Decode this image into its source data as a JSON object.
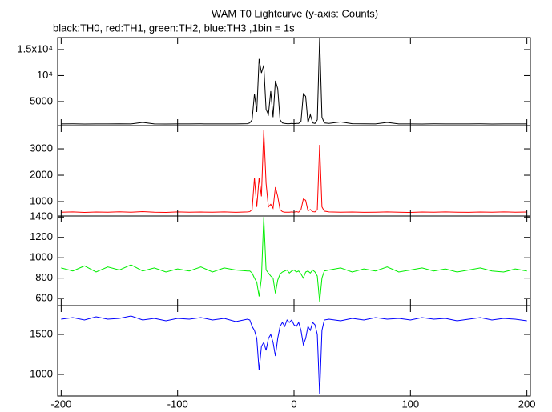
{
  "chart_data": {
    "type": "line",
    "title": "WAM T0 Lightcurve (y-axis: Counts)",
    "subtitle": "black:TH0, red:TH1, green:TH2, blue:TH3 ,1bin = 1s",
    "xlim": [
      -203,
      203
    ],
    "xticks": [
      -200,
      -100,
      0,
      100,
      200
    ],
    "x": [
      -200,
      -190,
      -180,
      -170,
      -160,
      -150,
      -140,
      -130,
      -120,
      -110,
      -100,
      -90,
      -80,
      -70,
      -60,
      -50,
      -40,
      -38,
      -36,
      -34,
      -32,
      -30,
      -28,
      -26,
      -24,
      -22,
      -20,
      -18,
      -16,
      -14,
      -12,
      -10,
      -8,
      -6,
      -4,
      -2,
      0,
      2,
      4,
      6,
      8,
      10,
      12,
      14,
      16,
      18,
      20,
      22,
      24,
      26,
      30,
      40,
      50,
      60,
      70,
      80,
      90,
      100,
      110,
      120,
      130,
      140,
      150,
      160,
      170,
      180,
      190,
      200
    ],
    "series": [
      {
        "color": "#000000",
        "ylim": [
          380,
          17300
        ],
        "yticks": [
          5000,
          {
            "value": 10000,
            "label": "10⁴"
          },
          {
            "value": 15000,
            "label": "1.5x10⁴"
          }
        ],
        "values": [
          700,
          720,
          690,
          710,
          700,
          730,
          700,
          1000,
          700,
          690,
          710,
          700,
          720,
          700,
          710,
          700,
          750,
          900,
          1500,
          6500,
          3000,
          13200,
          10500,
          12000,
          3500,
          2500,
          7000,
          2000,
          9000,
          7500,
          1500,
          900,
          800,
          750,
          750,
          800,
          750,
          800,
          800,
          1200,
          6500,
          6000,
          900,
          2500,
          900,
          800,
          1500,
          17200,
          2000,
          900,
          800,
          1100,
          750,
          720,
          700,
          1000,
          710,
          700,
          690,
          720,
          700,
          710,
          700,
          720,
          690,
          700,
          710,
          700
        ]
      },
      {
        "color": "#ff0000",
        "ylim": [
          455,
          3880
        ],
        "yticks": [
          1000,
          2000,
          3000
        ],
        "values": [
          600,
          610,
          590,
          605,
          600,
          615,
          600,
          620,
          600,
          590,
          610,
          600,
          605,
          600,
          610,
          595,
          610,
          620,
          700,
          1900,
          800,
          1900,
          1200,
          3700,
          1700,
          800,
          900,
          750,
          1550,
          1200,
          700,
          620,
          600,
          600,
          600,
          610,
          600,
          620,
          600,
          700,
          1100,
          1050,
          650,
          700,
          620,
          610,
          700,
          3150,
          800,
          640,
          610,
          600,
          605,
          595,
          600,
          610,
          600,
          590,
          605,
          600,
          610,
          600,
          595,
          605,
          600,
          610,
          600,
          605
        ]
      },
      {
        "color": "#00ee00",
        "ylim": [
          530,
          1410
        ],
        "yticks": [
          600,
          800,
          1000,
          1200,
          1400
        ],
        "values": [
          900,
          870,
          920,
          860,
          910,
          880,
          930,
          870,
          900,
          860,
          890,
          870,
          910,
          860,
          900,
          880,
          870,
          870,
          850,
          800,
          760,
          620,
          800,
          1400,
          880,
          850,
          820,
          800,
          650,
          780,
          840,
          860,
          870,
          880,
          850,
          870,
          880,
          860,
          870,
          840,
          800,
          860,
          870,
          850,
          880,
          860,
          820,
          570,
          800,
          870,
          880,
          900,
          860,
          890,
          870,
          910,
          860,
          880,
          900,
          870,
          890,
          860,
          880,
          900,
          870,
          860,
          890,
          870
        ]
      },
      {
        "color": "#0000ff",
        "ylim": [
          730,
          1860
        ],
        "yticks": [
          1000,
          1500
        ],
        "values": [
          1690,
          1710,
          1680,
          1720,
          1690,
          1700,
          1730,
          1680,
          1700,
          1670,
          1700,
          1690,
          1710,
          1680,
          1700,
          1660,
          1690,
          1680,
          1600,
          1550,
          1450,
          1050,
          1350,
          1400,
          1300,
          1450,
          1500,
          1400,
          1230,
          1450,
          1600,
          1650,
          1600,
          1680,
          1650,
          1680,
          1620,
          1600,
          1650,
          1550,
          1370,
          1450,
          1600,
          1550,
          1650,
          1620,
          1500,
          750,
          1550,
          1680,
          1690,
          1670,
          1700,
          1680,
          1710,
          1690,
          1700,
          1680,
          1710,
          1690,
          1700,
          1670,
          1690,
          1710,
          1680,
          1700,
          1690,
          1670
        ]
      }
    ]
  }
}
